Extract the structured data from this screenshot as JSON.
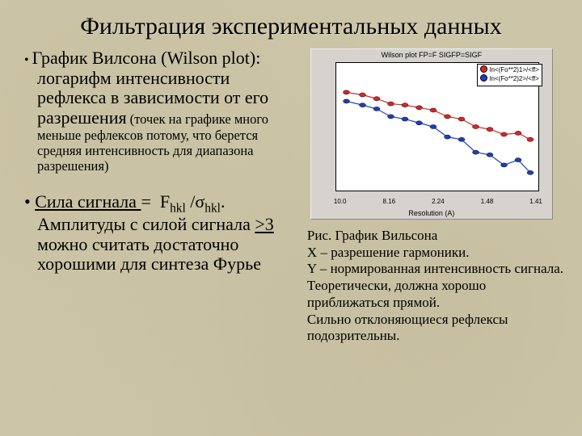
{
  "title": "Фильтрация экспериментальных данных",
  "bullets": {
    "b1_main": "График Вилсона (Wilson plot): логарифм интенсивности рефлекса в зависимости от его разрешения",
    "b1_sub": "(точек на графике много меньше рефлексов потому, что берется средняя интенсивность для диапазона разрешения)",
    "b2_label": "Сила  сигнала ",
    "b2_formula_rest": ".  Амплитуды с силой сигнала ",
    "b2_threshold": ">3",
    "b2_tail": " можно считать достаточно хорошими для синтеза Фурье"
  },
  "chart": {
    "title": "Wilson plot FP=F SIGFP=SIGF",
    "xlabel": "Resolution (A)",
    "xticks": [
      "10.0",
      "8.16",
      "2.24",
      "1.48",
      "1.41"
    ],
    "yticks": [
      "",
      "",
      "",
      "",
      "",
      ""
    ],
    "legend": [
      {
        "color": "#d62728",
        "label": "ln<(Fo**2)1>/<ff>"
      },
      {
        "color": "#1f3fb8",
        "label": "ln<(Fo**2)2>/<ff>"
      }
    ],
    "series": {
      "red": {
        "color": "#d62728",
        "pts": [
          [
            0.05,
            0.23
          ],
          [
            0.13,
            0.25
          ],
          [
            0.2,
            0.28
          ],
          [
            0.27,
            0.32
          ],
          [
            0.34,
            0.33
          ],
          [
            0.41,
            0.35
          ],
          [
            0.48,
            0.37
          ],
          [
            0.55,
            0.42
          ],
          [
            0.62,
            0.44
          ],
          [
            0.69,
            0.5
          ],
          [
            0.76,
            0.52
          ],
          [
            0.83,
            0.56
          ],
          [
            0.9,
            0.55
          ],
          [
            0.96,
            0.6
          ]
        ]
      },
      "blue": {
        "color": "#1f3fb8",
        "pts": [
          [
            0.05,
            0.3
          ],
          [
            0.13,
            0.33
          ],
          [
            0.2,
            0.36
          ],
          [
            0.27,
            0.42
          ],
          [
            0.34,
            0.44
          ],
          [
            0.41,
            0.47
          ],
          [
            0.48,
            0.5
          ],
          [
            0.55,
            0.58
          ],
          [
            0.62,
            0.6
          ],
          [
            0.69,
            0.7
          ],
          [
            0.76,
            0.72
          ],
          [
            0.83,
            0.8
          ],
          [
            0.9,
            0.76
          ],
          [
            0.96,
            0.86
          ]
        ]
      }
    }
  },
  "caption": {
    "l1": "Рис. График Вильсона",
    "l2": "X – разрешение  гармоники.",
    "l3": "Y – нормированная интенсивность сигнала.",
    "l4": "Теоретически, должна хорошо приближаться прямой.",
    "l5": "Сильно отклоняющиеся рефлексы подозрительны."
  }
}
